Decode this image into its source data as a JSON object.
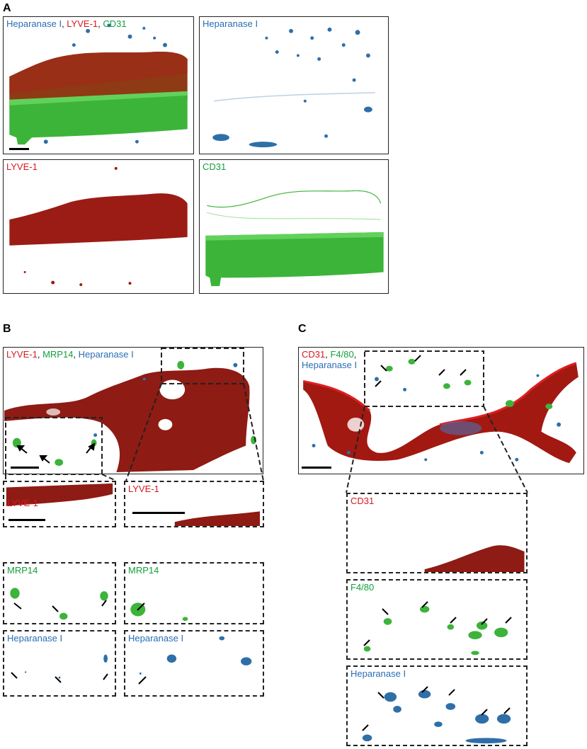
{
  "panel_letters": {
    "a": "A",
    "b": "B",
    "c": "C"
  },
  "sep": ", ",
  "panel_a": {
    "merged": {
      "heparanase": "Heparanase I",
      "lyve": "LYVE-1",
      "cd31": "CD31"
    },
    "heparanase": "Heparanase I",
    "lyve": "LYVE-1",
    "cd31": "CD31"
  },
  "panel_b": {
    "merged": {
      "lyve": "LYVE-1",
      "mrp14": "MRP14",
      "heparanase": "Heparanase I"
    },
    "left_lyve": "LYVE-1",
    "right_lyve": "LYVE-1",
    "left_mrp14": "MRP14",
    "right_mrp14": "MRP14",
    "left_heparanase": "Heparanase I",
    "right_heparanase": "Heparanase I"
  },
  "panel_c": {
    "merged": {
      "cd31": "CD31",
      "f480": "F4/80",
      "heparanase": "Heparanase I"
    },
    "cd31": "CD31",
    "f480": "F4/80",
    "heparanase": "Heparanase I"
  },
  "colors": {
    "lyve_red": "#d71920",
    "cd31_green": "#14a03c",
    "heparanase_blue": "#2a6db5",
    "tissue_red": "#8e1b14",
    "tissue_green": "#3cb43a",
    "cell_blue": "#2f6fa8"
  }
}
